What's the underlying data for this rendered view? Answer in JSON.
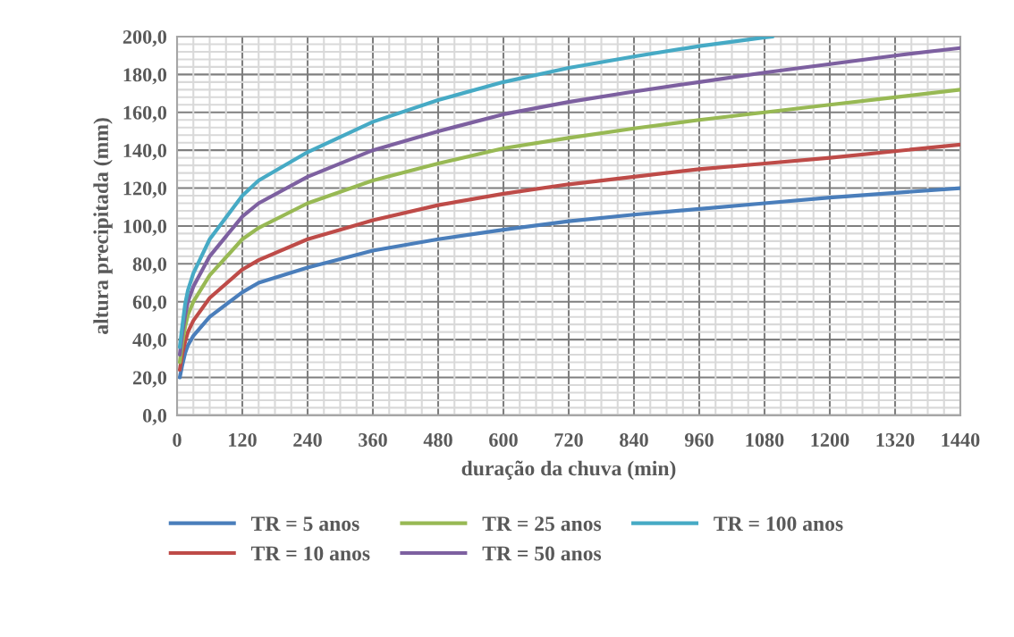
{
  "chart_data": {
    "type": "line",
    "xlabel": "duração da chuva (min)",
    "ylabel": "altura precipitada (mm)",
    "xlim": [
      0,
      1440
    ],
    "xticks": [
      0,
      120,
      240,
      360,
      480,
      600,
      720,
      840,
      960,
      1080,
      1200,
      1320,
      1440
    ],
    "ylim": [
      0,
      200
    ],
    "yticks": [
      {
        "value": 0,
        "label": "0,0"
      },
      {
        "value": 20,
        "label": "20,0"
      },
      {
        "value": 40,
        "label": "40,0"
      },
      {
        "value": 60,
        "label": "60,0"
      },
      {
        "value": 80,
        "label": "80,0"
      },
      {
        "value": 100,
        "label": "100,0"
      },
      {
        "value": 120,
        "label": "120,0"
      },
      {
        "value": 140,
        "label": "140,0"
      },
      {
        "value": 160,
        "label": "160,0"
      },
      {
        "value": 180,
        "label": "180,0"
      },
      {
        "value": 200,
        "label": "200,0"
      }
    ],
    "grid": true,
    "legend": "bottom",
    "marker": "none",
    "line_style": "solid",
    "x": [
      5,
      10,
      15,
      20,
      30,
      60,
      120,
      150,
      240,
      360,
      480,
      600,
      720,
      840,
      960,
      1080,
      1200,
      1320,
      1440
    ],
    "series": [
      {
        "name": "TR = 5 anos",
        "color": "#4a7ebb",
        "values": [
          20,
          27,
          33,
          37,
          42,
          52,
          65,
          70,
          78,
          87,
          93,
          98,
          102.5,
          106,
          109,
          112,
          115,
          117.5,
          120
        ]
      },
      {
        "name": "TR = 10 anos",
        "color": "#be4b48",
        "values": [
          24,
          33,
          39,
          44,
          50,
          62,
          77,
          82,
          93,
          103,
          111,
          117,
          122,
          126,
          130,
          133,
          136,
          139.5,
          143
        ]
      },
      {
        "name": "TR = 25 anos",
        "color": "#98b954",
        "values": [
          28,
          39,
          47,
          53,
          60,
          74,
          93,
          99,
          112,
          124,
          133,
          141,
          146.5,
          151.5,
          156,
          160,
          164,
          168,
          172
        ]
      },
      {
        "name": "TR = 50 anos",
        "color": "#7d60a0",
        "values": [
          32,
          44,
          53,
          60,
          68,
          84,
          105,
          112,
          126,
          140,
          150,
          159,
          165.5,
          171,
          176,
          181,
          185.5,
          190,
          194
        ]
      },
      {
        "name": "TR = 100 anos",
        "color": "#46aac5",
        "x": [
          5,
          10,
          15,
          20,
          30,
          60,
          120,
          150,
          240,
          360,
          480,
          600,
          720,
          840,
          960,
          1080,
          1095
        ],
        "values": [
          36,
          48,
          59,
          66,
          75,
          93,
          116,
          124,
          139,
          155,
          166.5,
          176,
          183.5,
          189.5,
          195,
          199.6,
          200
        ]
      }
    ]
  }
}
